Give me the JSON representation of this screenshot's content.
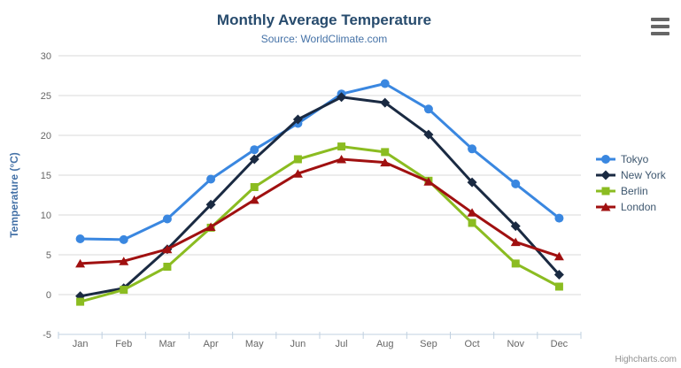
{
  "chart_data": {
    "type": "line",
    "title": "Monthly Average Temperature",
    "subtitle": "Source: WorldClimate.com",
    "categories": [
      "Jan",
      "Feb",
      "Mar",
      "Apr",
      "May",
      "Jun",
      "Jul",
      "Aug",
      "Sep",
      "Oct",
      "Nov",
      "Dec"
    ],
    "series": [
      {
        "name": "Tokyo",
        "color": "#3a87e0",
        "marker": "circle",
        "values": [
          7.0,
          6.9,
          9.5,
          14.5,
          18.2,
          21.5,
          25.2,
          26.5,
          23.3,
          18.3,
          13.9,
          9.6
        ]
      },
      {
        "name": "New York",
        "color": "#1a2a42",
        "marker": "diamond",
        "values": [
          -0.2,
          0.8,
          5.7,
          11.3,
          17.0,
          22.0,
          24.8,
          24.1,
          20.1,
          14.1,
          8.6,
          2.5
        ]
      },
      {
        "name": "Berlin",
        "color": "#8bbc21",
        "marker": "square",
        "values": [
          -0.9,
          0.6,
          3.5,
          8.4,
          13.5,
          17.0,
          18.6,
          17.9,
          14.3,
          9.0,
          3.9,
          1.0
        ]
      },
      {
        "name": "London",
        "color": "#a01010",
        "marker": "triangle",
        "values": [
          3.9,
          4.2,
          5.7,
          8.5,
          11.9,
          15.2,
          17.0,
          16.6,
          14.2,
          10.3,
          6.6,
          4.8
        ]
      }
    ],
    "xlabel": "",
    "ylabel": "Temperature (°C)",
    "ylim": [
      -5,
      30
    ],
    "ytick_step": 5,
    "grid": true,
    "legend_position": "right"
  },
  "styles": {
    "grid_color": "#d8d8d8",
    "axis_line_color": "#c0d0e0",
    "tick_label_color": "#666666",
    "title_color": "#274b6d",
    "subtitle_color": "#4572a7",
    "axis_title_color": "#4572a7",
    "legend_text_color": "#3e576f",
    "credit_color": "#909090"
  },
  "menu": {
    "icon": "hamburger-menu-icon"
  },
  "credit": {
    "label": "Highcharts.com"
  }
}
